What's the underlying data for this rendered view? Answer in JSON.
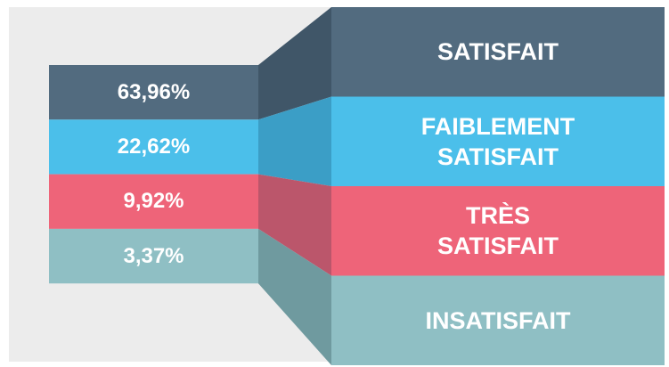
{
  "chart_data": {
    "type": "bar",
    "categories": [
      "SATISFAIT",
      "FAIBLEMENT SATISFAIT",
      "TRÈS SATISFAIT",
      "INSATISFAIT"
    ],
    "values": [
      63.96,
      22.62,
      9.92,
      3.37
    ],
    "value_labels": [
      "63,96%",
      "22,62%",
      "9,92%",
      "3,37%"
    ],
    "colors": [
      "#526b7f",
      "#4bbfea",
      "#ee6479",
      "#8fbfc4"
    ],
    "connector_colors": [
      "#405668",
      "#3b9ec6",
      "#bb566b",
      "#6f9a9f"
    ]
  }
}
